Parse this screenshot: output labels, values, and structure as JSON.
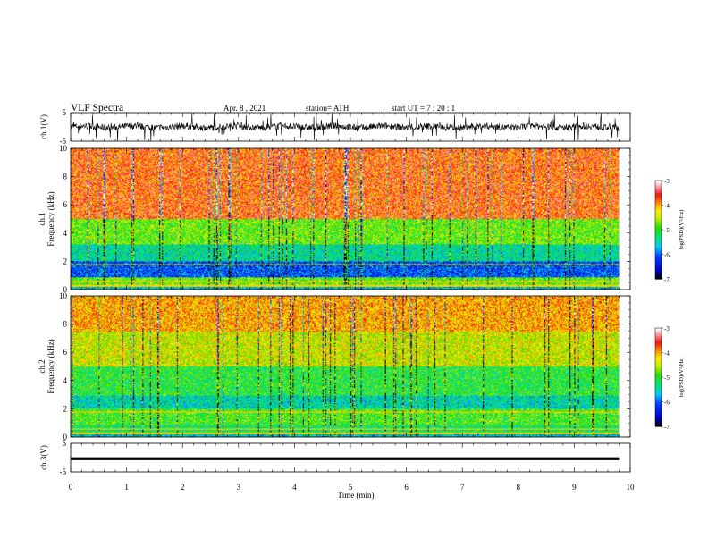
{
  "header": {
    "title": "VLF  Spectra",
    "date": "Apr. 8  , 2021",
    "station": "station= ATH",
    "start": "start  UT  =    7  : 20 : 1"
  },
  "chart_data": [
    {
      "type": "line",
      "name": "ch1-waveform",
      "ylabel": "ch.1(V)",
      "ylim": [
        -5,
        5
      ],
      "yticks": [
        "5",
        "-5"
      ],
      "xlim": [
        0,
        10
      ],
      "note_level": [
        -1.5,
        1.5
      ]
    },
    {
      "type": "heatmap",
      "name": "ch1-spectrogram",
      "ylabel": "ch.1\nFrequency (kHz)",
      "ylabel_lines": [
        "ch.1",
        "Frequency (kHz)"
      ],
      "ylim": [
        0,
        10
      ],
      "yticks": [
        "0",
        "2",
        "4",
        "6",
        "8",
        "10"
      ],
      "xlim": [
        0,
        10
      ],
      "data_end_min": 9.8,
      "colorbar": {
        "label": "log(PSD)(V²/Hz)",
        "ticks": [
          "-3",
          "-4",
          "-5",
          "-6",
          "-7"
        ],
        "range": [
          -7,
          -3
        ]
      }
    },
    {
      "type": "heatmap",
      "name": "ch2-spectrogram",
      "ylabel_lines": [
        "ch.2",
        "Frequency (kHz)"
      ],
      "ylim": [
        0,
        10
      ],
      "yticks": [
        "0",
        "2",
        "4",
        "6",
        "8",
        "10"
      ],
      "xlim": [
        0,
        10
      ],
      "data_end_min": 9.8,
      "colorbar": {
        "label": "log(PSD)(V²/Hz)",
        "ticks": [
          "-3",
          "-4",
          "-5",
          "-6",
          "-7"
        ],
        "range": [
          -7,
          -3
        ]
      }
    },
    {
      "type": "line",
      "name": "ch3-waveform",
      "ylabel": "ch.3(V)",
      "ylim": [
        -5,
        5
      ],
      "yticks": [
        "5",
        "-5"
      ],
      "xlim": [
        0,
        10
      ],
      "xlabel": "Time  (min)",
      "xticks": [
        "0",
        "1",
        "2",
        "3",
        "4",
        "5",
        "6",
        "7",
        "8",
        "9",
        "10"
      ],
      "level": -0.4
    }
  ]
}
